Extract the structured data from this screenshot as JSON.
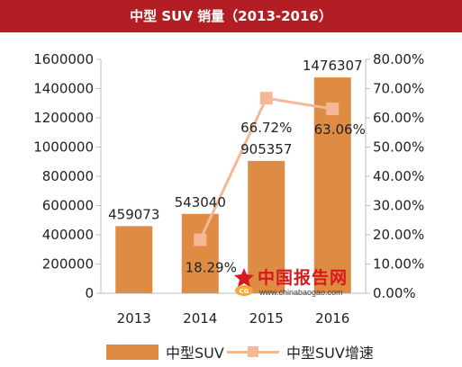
{
  "title": "中型  SUV  销量（2013-2016）",
  "colors": {
    "title_bg": "#b21e23",
    "bar": "#de8b44",
    "line": "#f5b896",
    "watermark_red": "#d7191f"
  },
  "chart_data": {
    "type": "bar",
    "categories": [
      "2013",
      "2014",
      "2015",
      "2016"
    ],
    "series": [
      {
        "name": "中型SUV",
        "type": "bar",
        "axis": "left",
        "values": [
          459073,
          543040,
          905357,
          1476307
        ],
        "labels": [
          "459073",
          "543040",
          "905357",
          "1476307"
        ]
      },
      {
        "name": "中型SUV增速",
        "type": "line",
        "axis": "right",
        "values": [
          null,
          18.29,
          66.72,
          63.06
        ],
        "labels": [
          "",
          "18.29%",
          "66.72%",
          "63.06%"
        ]
      }
    ],
    "y_left": {
      "min": 0,
      "max": 1600000,
      "ticks": [
        "0",
        "200000",
        "400000",
        "600000",
        "800000",
        "1000000",
        "1200000",
        "1400000",
        "1600000"
      ]
    },
    "y_right": {
      "min": 0,
      "max": 80,
      "ticks": [
        "0.00%",
        "10.00%",
        "20.00%",
        "30.00%",
        "40.00%",
        "50.00%",
        "60.00%",
        "70.00%",
        "80.00%"
      ]
    },
    "grid": false,
    "legend": "bottom"
  },
  "legend": [
    {
      "label": "中型SUV"
    },
    {
      "label": "中型SUV增速"
    }
  ],
  "watermark": {
    "name": "中国报告网",
    "url": "www.chinabaogao.com"
  }
}
